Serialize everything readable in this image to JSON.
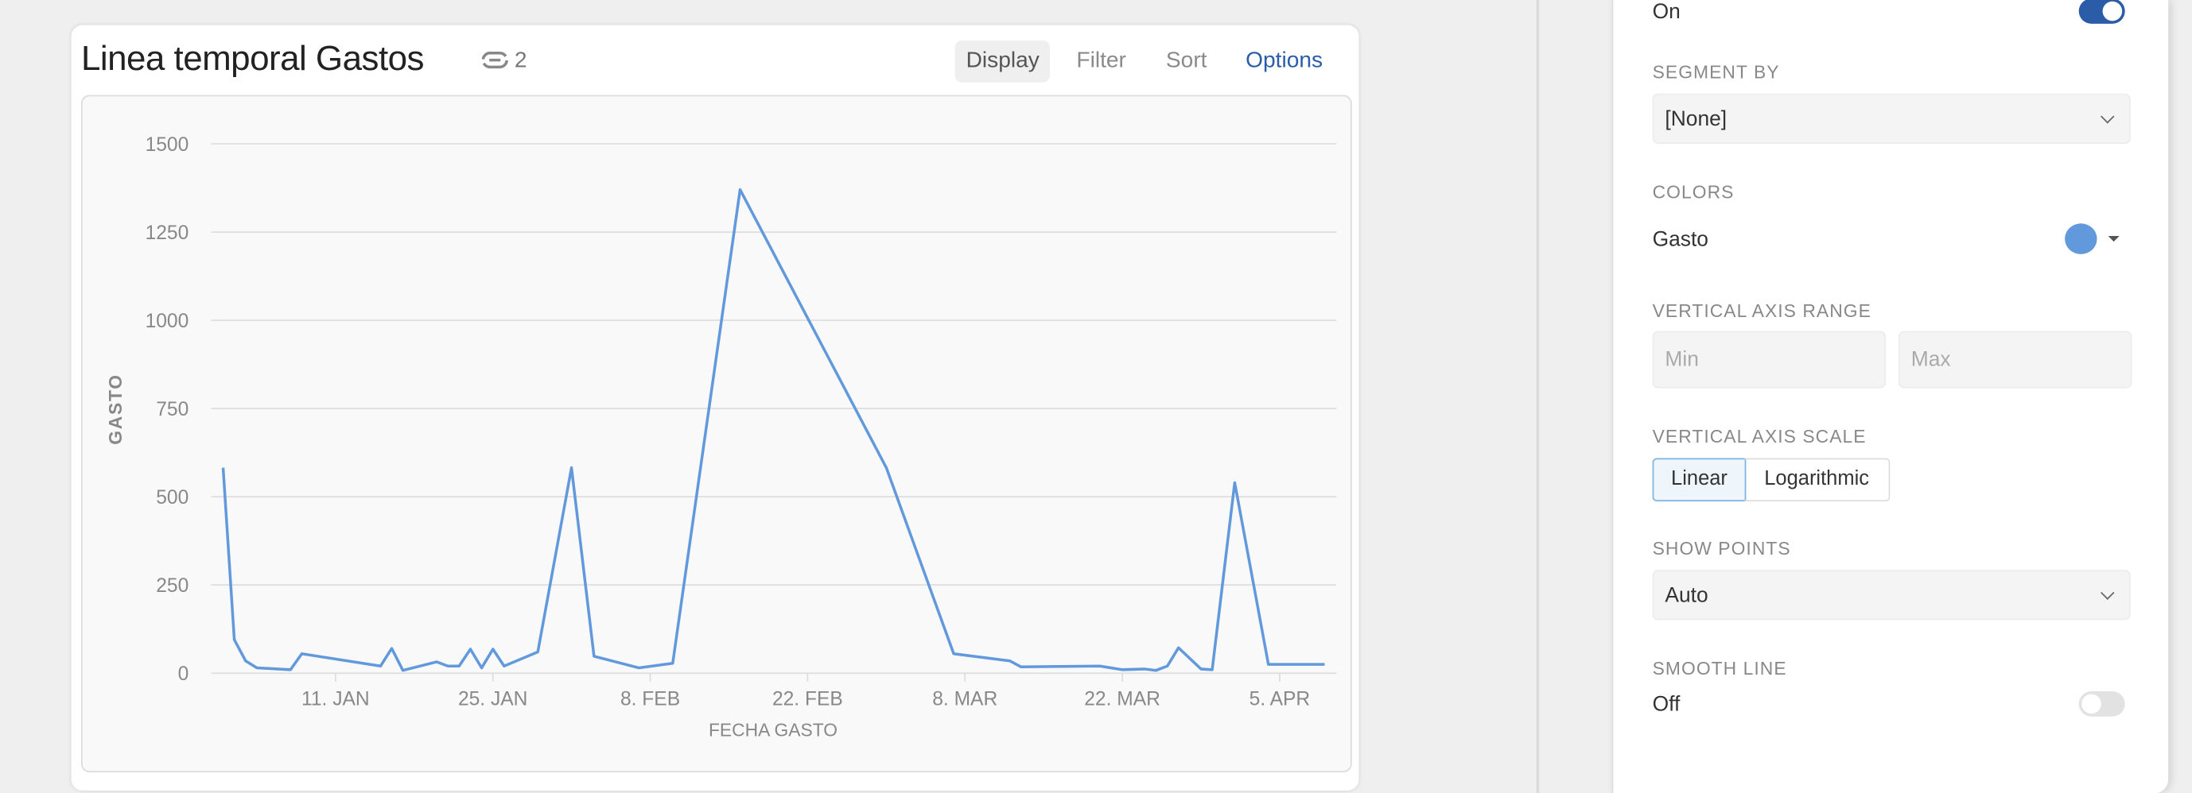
{
  "card": {
    "title": "Linea temporal Gastos",
    "link_count": "2",
    "link_icon": "link-icon",
    "tabs": [
      {
        "label": "Display",
        "active": true
      },
      {
        "label": "Filter"
      },
      {
        "label": "Sort"
      },
      {
        "label": "Options"
      }
    ]
  },
  "chart_data": {
    "type": "line",
    "title": "",
    "xlabel": "FECHA GASTO",
    "ylabel": "GASTO",
    "ylim": [
      0,
      1500
    ],
    "yticks": [
      0,
      250,
      500,
      750,
      1000,
      1250,
      1500
    ],
    "xtick_labels": [
      "11. JAN",
      "25. JAN",
      "8. FEB",
      "22. FEB",
      "8. MAR",
      "22. MAR",
      "5. APR"
    ],
    "xticks": [
      "Jan 11",
      "Jan 25",
      "Feb 8",
      "Feb 22",
      "Mar 8",
      "Mar 22",
      "Apr 5"
    ],
    "grid": true,
    "color": "#6199dc",
    "series": [
      {
        "name": "Gasto",
        "x": [
          "Jan 1",
          "Jan 2",
          "Jan 3",
          "Jan 4",
          "Jan 7",
          "Jan 8",
          "Jan 15",
          "Jan 16",
          "Jan 17",
          "Jan 20",
          "Jan 21",
          "Jan 22",
          "Jan 23",
          "Jan 24",
          "Jan 25",
          "Jan 26",
          "Jan 29",
          "Feb 1",
          "Feb 3",
          "Feb 7",
          "Feb 10",
          "Feb 16",
          "Mar 1",
          "Mar 7",
          "Mar 12",
          "Mar 13",
          "Mar 20",
          "Mar 22",
          "Mar 24",
          "Mar 25",
          "Mar 26",
          "Mar 27",
          "Mar 29",
          "Mar 30",
          "Apr 1",
          "Apr 4",
          "Apr 9"
        ],
        "y": [
          582,
          95,
          35,
          15,
          10,
          55,
          20,
          70,
          8,
          32,
          20,
          20,
          68,
          15,
          68,
          20,
          60,
          582,
          48,
          15,
          28,
          1370,
          582,
          55,
          35,
          18,
          20,
          10,
          12,
          8,
          20,
          72,
          12,
          10,
          540,
          25,
          25
        ]
      }
    ]
  },
  "panel": {
    "legend_value": "On",
    "segment_by": {
      "label": "SEGMENT BY",
      "value": "[None]"
    },
    "colors": {
      "label": "COLORS",
      "series": "Gasto",
      "color": "#6199dc"
    },
    "axis_range": {
      "label": "VERTICAL AXIS RANGE",
      "min_placeholder": "Min",
      "max_placeholder": "Max"
    },
    "axis_scale": {
      "label": "VERTICAL AXIS SCALE",
      "options": [
        "Linear",
        "Logarithmic"
      ],
      "selected": "Linear"
    },
    "show_points": {
      "label": "SHOW POINTS",
      "value": "Auto"
    },
    "smooth_line": {
      "label": "SMOOTH LINE",
      "value": "Off"
    }
  }
}
